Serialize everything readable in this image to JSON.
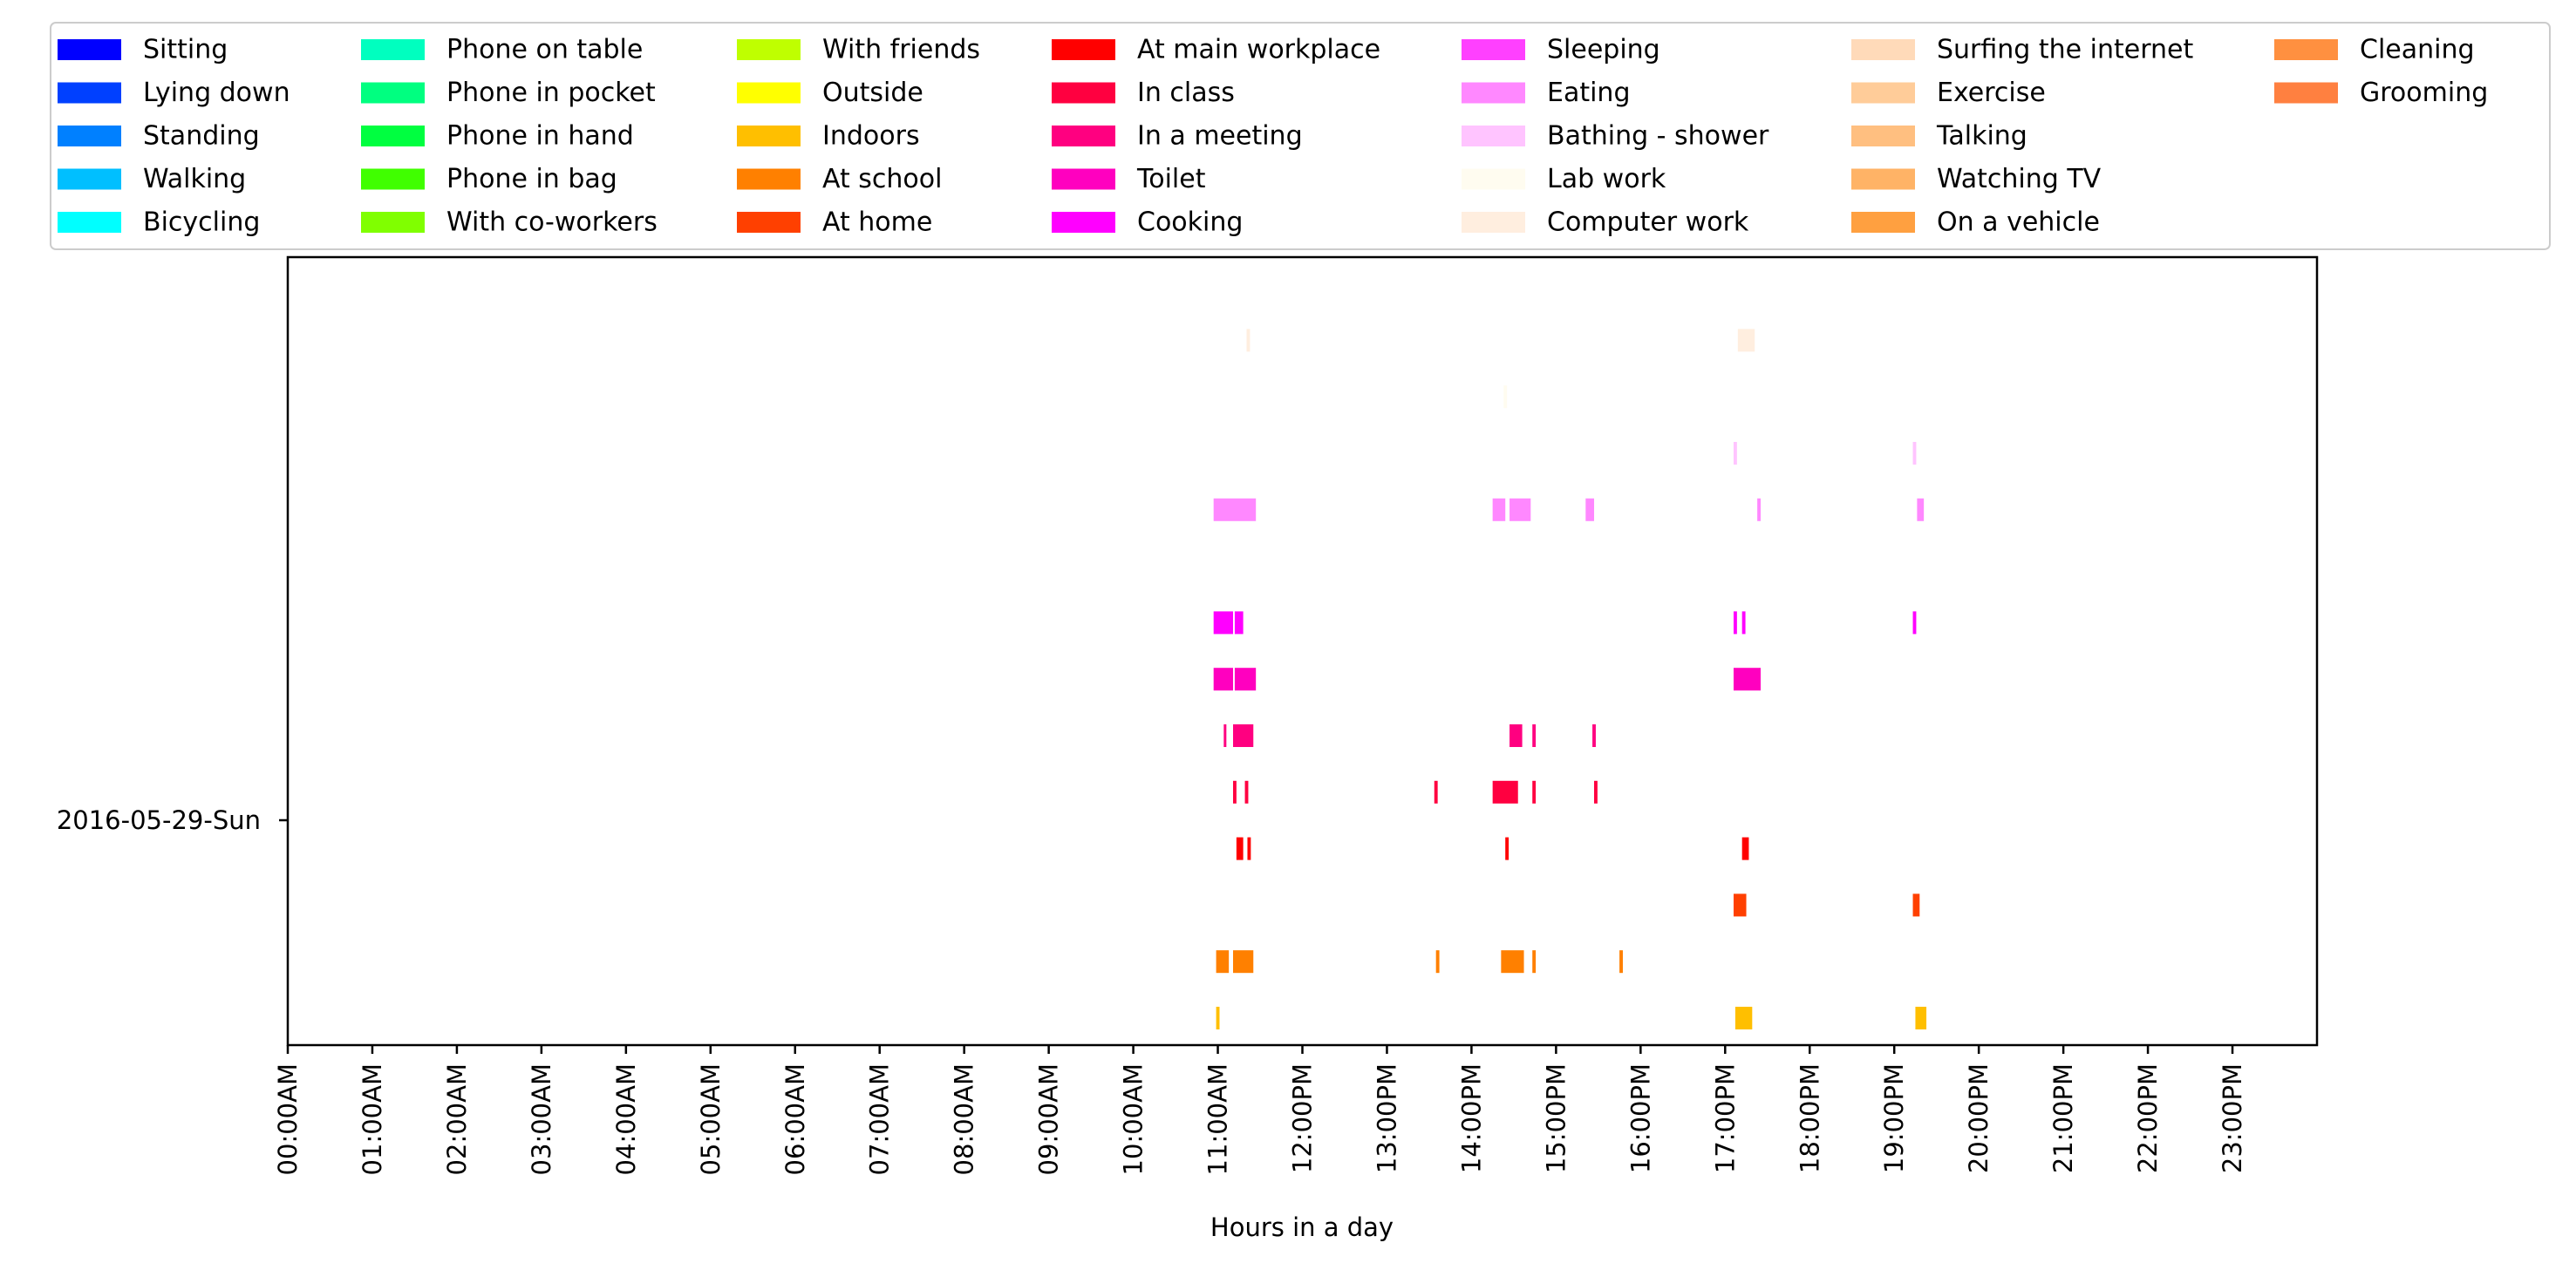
{
  "chart_data": {
    "type": "timeline",
    "xlabel": "Hours in a day",
    "ylabel": "",
    "day_label": "2016-05-29-Sun",
    "xlim": [
      0,
      24
    ],
    "x_ticks": [
      "00:00AM",
      "01:00AM",
      "02:00AM",
      "03:00AM",
      "04:00AM",
      "05:00AM",
      "06:00AM",
      "07:00AM",
      "08:00AM",
      "09:00AM",
      "10:00AM",
      "11:00AM",
      "12:00PM",
      "13:00PM",
      "14:00PM",
      "15:00PM",
      "16:00PM",
      "17:00PM",
      "18:00PM",
      "19:00PM",
      "20:00PM",
      "21:00PM",
      "22:00PM",
      "23:00PM"
    ],
    "grid": false,
    "legend_position": "top",
    "legend_columns": 7,
    "series": [
      {
        "name": "Sitting",
        "color": "#0000ff",
        "segments": []
      },
      {
        "name": "Lying down",
        "color": "#0040ff",
        "segments": []
      },
      {
        "name": "Standing",
        "color": "#0080ff",
        "segments": []
      },
      {
        "name": "Walking",
        "color": "#00bfff",
        "segments": []
      },
      {
        "name": "Bicycling",
        "color": "#00ffff",
        "segments": []
      },
      {
        "name": "Phone on table",
        "color": "#00ffbf",
        "segments": []
      },
      {
        "name": "Phone in pocket",
        "color": "#00ff80",
        "segments": []
      },
      {
        "name": "Phone in hand",
        "color": "#00ff40",
        "segments": []
      },
      {
        "name": "Phone in bag",
        "color": "#40ff00",
        "segments": []
      },
      {
        "name": "With co-workers",
        "color": "#80ff00",
        "segments": []
      },
      {
        "name": "With friends",
        "color": "#bfff00",
        "segments": []
      },
      {
        "name": "Outside",
        "color": "#ffff00",
        "segments": []
      },
      {
        "name": "Indoors",
        "color": "#ffbf00",
        "segments": [
          [
            10.98,
            11.02
          ],
          [
            17.12,
            17.32
          ],
          [
            19.25,
            19.38
          ]
        ]
      },
      {
        "name": "At school",
        "color": "#ff8000",
        "segments": [
          [
            10.98,
            11.13
          ],
          [
            11.18,
            11.42
          ],
          [
            13.58,
            13.62
          ],
          [
            14.35,
            14.62
          ],
          [
            14.72,
            14.76
          ],
          [
            15.75,
            15.79
          ]
        ]
      },
      {
        "name": "At home",
        "color": "#ff4000",
        "segments": [
          [
            17.1,
            17.25
          ],
          [
            19.22,
            19.3
          ]
        ]
      },
      {
        "name": "At main workplace",
        "color": "#ff0000",
        "segments": [
          [
            11.22,
            11.3
          ],
          [
            11.35,
            11.39
          ],
          [
            14.4,
            14.44
          ],
          [
            17.2,
            17.28
          ]
        ]
      },
      {
        "name": "In class",
        "color": "#ff0040",
        "segments": [
          [
            11.18,
            11.22
          ],
          [
            11.32,
            11.36
          ],
          [
            13.56,
            13.6
          ],
          [
            14.25,
            14.55
          ],
          [
            14.72,
            14.76
          ],
          [
            15.45,
            15.49
          ]
        ]
      },
      {
        "name": "In a meeting",
        "color": "#ff0080",
        "segments": [
          [
            11.07,
            11.1
          ],
          [
            11.18,
            11.42
          ],
          [
            14.45,
            14.6
          ],
          [
            14.72,
            14.76
          ],
          [
            15.43,
            15.47
          ]
        ]
      },
      {
        "name": "Toilet",
        "color": "#ff00bf",
        "segments": [
          [
            10.95,
            11.18
          ],
          [
            11.2,
            11.45
          ],
          [
            17.1,
            17.42
          ]
        ]
      },
      {
        "name": "Cooking",
        "color": "#ff00ff",
        "segments": [
          [
            10.95,
            11.18
          ],
          [
            11.2,
            11.3
          ],
          [
            17.1,
            17.14
          ],
          [
            17.2,
            17.24
          ],
          [
            19.22,
            19.26
          ]
        ]
      },
      {
        "name": "Sleeping",
        "color": "#ff40ff",
        "segments": []
      },
      {
        "name": "Eating",
        "color": "#ff88ff",
        "segments": [
          [
            10.95,
            11.45
          ],
          [
            14.25,
            14.4
          ],
          [
            14.45,
            14.7
          ],
          [
            15.35,
            15.45
          ],
          [
            17.38,
            17.42
          ],
          [
            19.27,
            19.35
          ]
        ]
      },
      {
        "name": "Bathing - shower",
        "color": "#ffc4ff",
        "segments": [
          [
            17.1,
            17.14
          ],
          [
            19.22,
            19.26
          ]
        ]
      },
      {
        "name": "Lab work",
        "color": "#fffcf0",
        "segments": [
          [
            14.38,
            14.42
          ]
        ]
      },
      {
        "name": "Computer work",
        "color": "#ffeedf",
        "segments": [
          [
            11.34,
            11.38
          ],
          [
            17.15,
            17.35
          ]
        ]
      },
      {
        "name": "Surfing the internet",
        "color": "#ffdab9",
        "segments": []
      },
      {
        "name": "Exercise",
        "color": "#ffcc99",
        "segments": []
      },
      {
        "name": "Talking",
        "color": "#ffbf80",
        "segments": []
      },
      {
        "name": "Watching TV",
        "color": "#ffb366",
        "segments": []
      },
      {
        "name": "On a vehicle",
        "color": "#ffa040",
        "segments": []
      },
      {
        "name": "Cleaning",
        "color": "#ff9040",
        "segments": []
      },
      {
        "name": "Grooming",
        "color": "#ff8040",
        "segments": []
      }
    ]
  }
}
